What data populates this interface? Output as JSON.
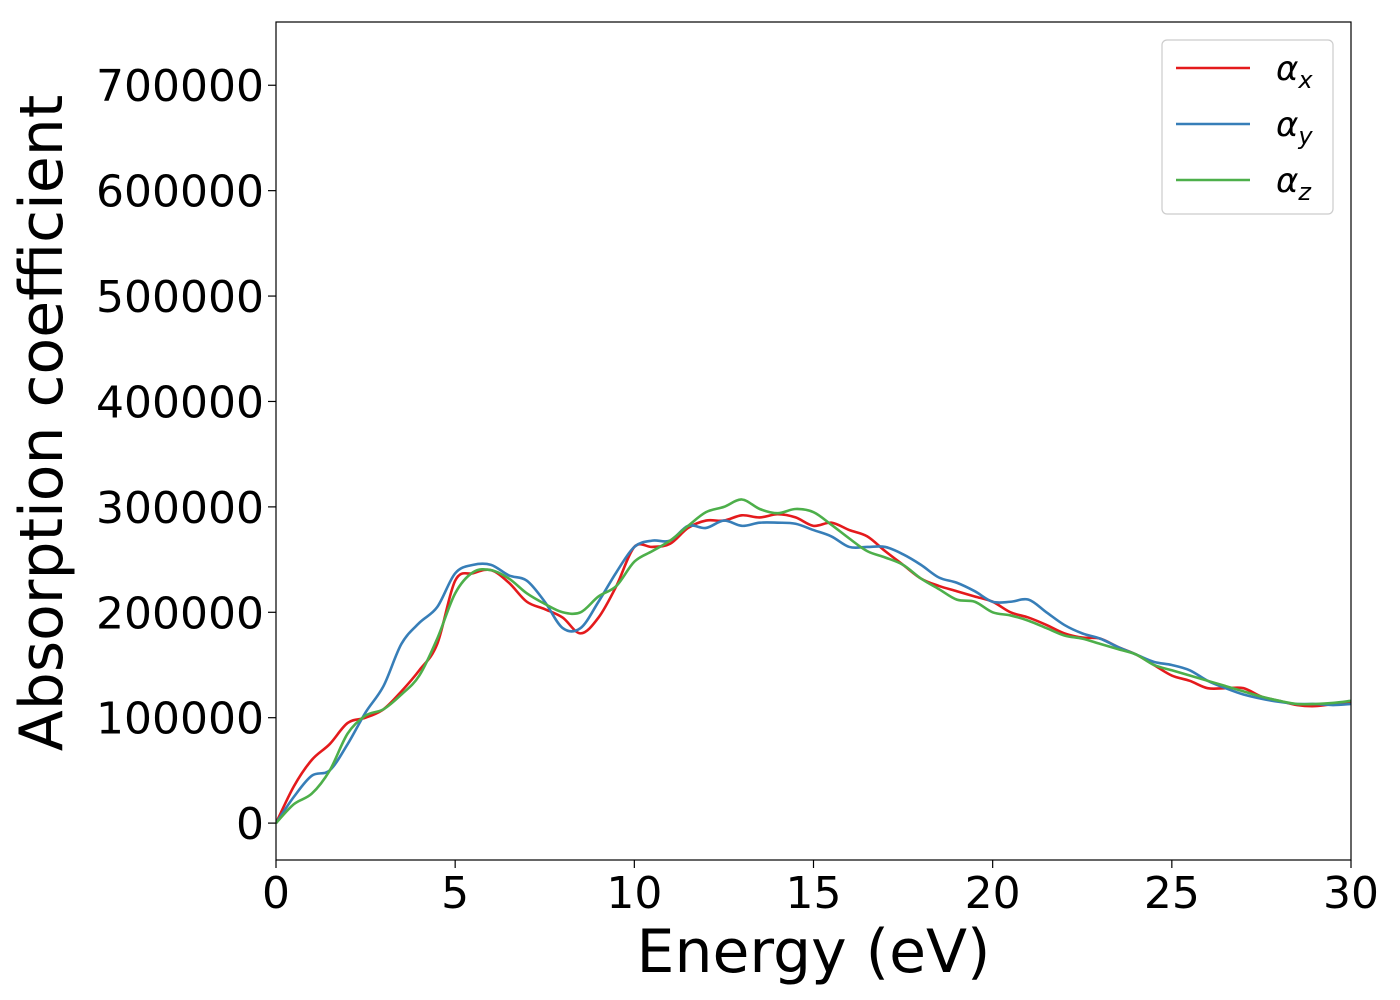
{
  "chart_data": {
    "type": "line",
    "xlabel": "Energy (eV)",
    "ylabel": "Absorption coefficient",
    "xlim": [
      0,
      30
    ],
    "ylim": [
      -35000,
      760000
    ],
    "xticks": [
      0,
      5,
      10,
      15,
      20,
      25,
      30
    ],
    "yticks": [
      0,
      100000,
      200000,
      300000,
      400000,
      500000,
      600000,
      700000
    ],
    "legend_position": "top-right",
    "grid": false,
    "series": [
      {
        "name": "αx",
        "name_base": "α",
        "name_sub": "x",
        "color": "#e41a1c",
        "points": [
          [
            0,
            0
          ],
          [
            0.5,
            35000
          ],
          [
            1,
            60000
          ],
          [
            1.5,
            75000
          ],
          [
            2,
            95000
          ],
          [
            2.5,
            100000
          ],
          [
            3,
            108000
          ],
          [
            3.5,
            125000
          ],
          [
            4,
            145000
          ],
          [
            4.5,
            170000
          ],
          [
            5,
            230000
          ],
          [
            5.5,
            237000
          ],
          [
            6,
            240000
          ],
          [
            6.5,
            228000
          ],
          [
            7,
            210000
          ],
          [
            7.5,
            203000
          ],
          [
            8,
            195000
          ],
          [
            8.5,
            180000
          ],
          [
            9,
            195000
          ],
          [
            9.5,
            225000
          ],
          [
            10,
            262000
          ],
          [
            10.5,
            262000
          ],
          [
            11,
            265000
          ],
          [
            11.5,
            280000
          ],
          [
            12,
            287000
          ],
          [
            12.5,
            287000
          ],
          [
            13,
            292000
          ],
          [
            13.5,
            290000
          ],
          [
            14,
            293000
          ],
          [
            14.5,
            290000
          ],
          [
            15,
            282000
          ],
          [
            15.5,
            285000
          ],
          [
            16,
            278000
          ],
          [
            16.5,
            272000
          ],
          [
            17,
            258000
          ],
          [
            17.5,
            245000
          ],
          [
            18,
            232000
          ],
          [
            18.5,
            225000
          ],
          [
            19,
            220000
          ],
          [
            19.5,
            215000
          ],
          [
            20,
            210000
          ],
          [
            20.5,
            200000
          ],
          [
            21,
            195000
          ],
          [
            21.5,
            188000
          ],
          [
            22,
            180000
          ],
          [
            22.5,
            176000
          ],
          [
            23,
            175000
          ],
          [
            23.5,
            167000
          ],
          [
            24,
            160000
          ],
          [
            24.5,
            150000
          ],
          [
            25,
            140000
          ],
          [
            25.5,
            135000
          ],
          [
            26,
            128000
          ],
          [
            26.5,
            128000
          ],
          [
            27,
            128000
          ],
          [
            27.5,
            120000
          ],
          [
            28,
            116000
          ],
          [
            28.5,
            112000
          ],
          [
            29,
            111000
          ],
          [
            29.5,
            113000
          ],
          [
            30,
            115000
          ]
        ]
      },
      {
        "name": "αy",
        "name_base": "α",
        "name_sub": "y",
        "color": "#377eb8",
        "points": [
          [
            0,
            0
          ],
          [
            0.5,
            25000
          ],
          [
            1,
            45000
          ],
          [
            1.5,
            50000
          ],
          [
            2,
            75000
          ],
          [
            2.5,
            105000
          ],
          [
            3,
            130000
          ],
          [
            3.5,
            170000
          ],
          [
            4,
            190000
          ],
          [
            4.5,
            205000
          ],
          [
            5,
            237000
          ],
          [
            5.5,
            245000
          ],
          [
            6,
            245000
          ],
          [
            6.5,
            235000
          ],
          [
            7,
            230000
          ],
          [
            7.5,
            210000
          ],
          [
            8,
            185000
          ],
          [
            8.5,
            185000
          ],
          [
            9,
            210000
          ],
          [
            9.5,
            238000
          ],
          [
            10,
            262000
          ],
          [
            10.5,
            268000
          ],
          [
            11,
            268000
          ],
          [
            11.5,
            282000
          ],
          [
            12,
            280000
          ],
          [
            12.5,
            287000
          ],
          [
            13,
            282000
          ],
          [
            13.5,
            285000
          ],
          [
            14,
            285000
          ],
          [
            14.5,
            284000
          ],
          [
            15,
            278000
          ],
          [
            15.5,
            272000
          ],
          [
            16,
            262000
          ],
          [
            16.5,
            262000
          ],
          [
            17,
            262000
          ],
          [
            17.5,
            255000
          ],
          [
            18,
            245000
          ],
          [
            18.5,
            233000
          ],
          [
            19,
            228000
          ],
          [
            19.5,
            220000
          ],
          [
            20,
            210000
          ],
          [
            20.5,
            210000
          ],
          [
            21,
            212000
          ],
          [
            21.5,
            200000
          ],
          [
            22,
            188000
          ],
          [
            22.5,
            180000
          ],
          [
            23,
            175000
          ],
          [
            23.5,
            167000
          ],
          [
            24,
            160000
          ],
          [
            24.5,
            153000
          ],
          [
            25,
            150000
          ],
          [
            25.5,
            145000
          ],
          [
            26,
            135000
          ],
          [
            26.5,
            128000
          ],
          [
            27,
            122000
          ],
          [
            27.5,
            118000
          ],
          [
            28,
            115000
          ],
          [
            28.5,
            113000
          ],
          [
            29,
            113000
          ],
          [
            29.5,
            112000
          ],
          [
            30,
            113000
          ]
        ]
      },
      {
        "name": "αz",
        "name_base": "α",
        "name_sub": "z",
        "color": "#4daf4a",
        "points": [
          [
            0,
            0
          ],
          [
            0.5,
            18000
          ],
          [
            1,
            28000
          ],
          [
            1.5,
            50000
          ],
          [
            2,
            85000
          ],
          [
            2.5,
            102000
          ],
          [
            3,
            108000
          ],
          [
            3.5,
            122000
          ],
          [
            4,
            140000
          ],
          [
            4.5,
            175000
          ],
          [
            5,
            218000
          ],
          [
            5.5,
            238000
          ],
          [
            6,
            240000
          ],
          [
            6.5,
            232000
          ],
          [
            7,
            218000
          ],
          [
            7.5,
            208000
          ],
          [
            8,
            200000
          ],
          [
            8.5,
            200000
          ],
          [
            9,
            215000
          ],
          [
            9.5,
            225000
          ],
          [
            10,
            248000
          ],
          [
            10.5,
            258000
          ],
          [
            11,
            268000
          ],
          [
            11.5,
            282000
          ],
          [
            12,
            295000
          ],
          [
            12.5,
            300000
          ],
          [
            13,
            307000
          ],
          [
            13.5,
            298000
          ],
          [
            14,
            294000
          ],
          [
            14.5,
            298000
          ],
          [
            15,
            295000
          ],
          [
            15.5,
            283000
          ],
          [
            16,
            270000
          ],
          [
            16.5,
            258000
          ],
          [
            17,
            252000
          ],
          [
            17.5,
            245000
          ],
          [
            18,
            232000
          ],
          [
            18.5,
            222000
          ],
          [
            19,
            212000
          ],
          [
            19.5,
            210000
          ],
          [
            20,
            200000
          ],
          [
            20.5,
            197000
          ],
          [
            21,
            192000
          ],
          [
            21.5,
            185000
          ],
          [
            22,
            178000
          ],
          [
            22.5,
            175000
          ],
          [
            23,
            170000
          ],
          [
            23.5,
            165000
          ],
          [
            24,
            160000
          ],
          [
            24.5,
            150000
          ],
          [
            25,
            145000
          ],
          [
            25.5,
            140000
          ],
          [
            26,
            135000
          ],
          [
            26.5,
            130000
          ],
          [
            27,
            125000
          ],
          [
            27.5,
            120000
          ],
          [
            28,
            116000
          ],
          [
            28.5,
            113000
          ],
          [
            29,
            113000
          ],
          [
            29.5,
            114000
          ],
          [
            30,
            116000
          ]
        ]
      }
    ]
  }
}
